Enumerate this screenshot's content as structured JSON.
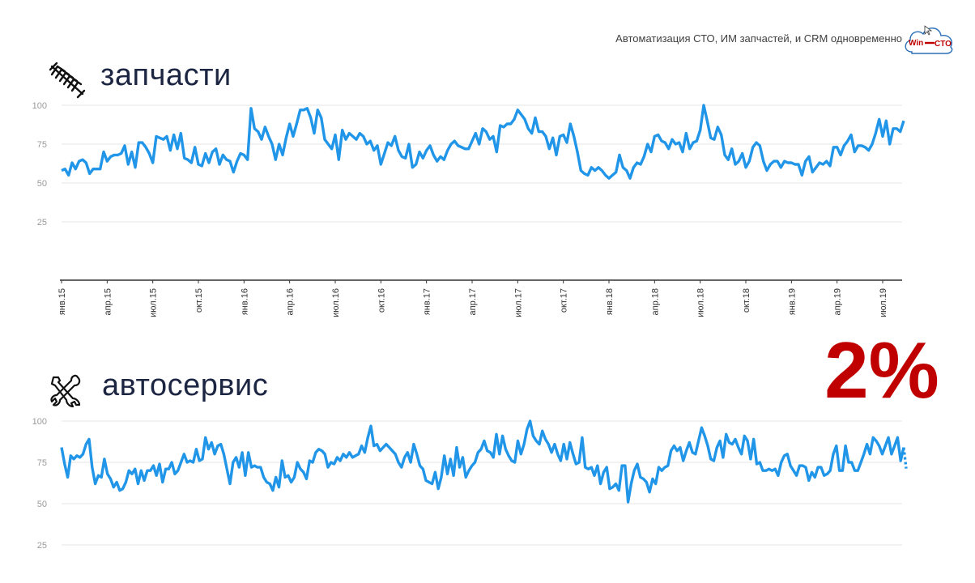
{
  "header": {
    "tagline": "Автоматизация СТО, ИМ запчастей, и CRM одновременно",
    "logo_text": {
      "left": "Win",
      "right": "CTO"
    }
  },
  "sections": [
    {
      "title": "запчасти",
      "icon": "spring-icon"
    },
    {
      "title": "автосервис",
      "icon": "wrench-screwdriver-icon"
    }
  ],
  "highlight": {
    "text": "2%",
    "color": "#c00000"
  },
  "colors": {
    "line": "#2196e8",
    "grid": "#e4e4e4",
    "title": "#1c2541"
  },
  "chart_data": [
    {
      "type": "line",
      "ylim": [
        0,
        100
      ],
      "yticks": [
        25,
        50,
        75,
        100
      ],
      "grid": true,
      "x_tick_labels": [
        "янв.15",
        "апр.15",
        "июл.15",
        "окт.15",
        "янв.16",
        "апр.16",
        "июл.16",
        "окт.16",
        "янв.17",
        "апр.17",
        "июл.17",
        "окт.17",
        "янв.18",
        "апр.18",
        "июл.18",
        "окт.18",
        "янв.19",
        "апр.19",
        "июл.19"
      ],
      "series": [
        {
          "values": [
            58,
            59,
            55,
            63,
            59,
            64,
            65,
            63,
            56,
            59,
            59,
            59,
            70,
            64,
            67,
            68,
            68,
            69,
            74,
            62,
            70,
            60,
            76,
            76,
            73,
            69,
            63,
            80,
            79,
            78,
            80,
            71,
            81,
            72,
            82,
            66,
            65,
            63,
            73,
            62,
            61,
            69,
            63,
            70,
            72,
            62,
            68,
            65,
            64,
            57,
            64,
            69,
            68,
            65,
            98,
            85,
            83,
            78,
            86,
            80,
            75,
            65,
            75,
            68,
            79,
            88,
            80,
            88,
            97,
            97,
            98,
            92,
            82,
            97,
            92,
            78,
            75,
            72,
            81,
            65,
            84,
            78,
            82,
            80,
            78,
            82,
            80,
            75,
            77,
            71,
            74,
            62,
            69,
            76,
            74,
            80,
            71,
            67,
            66,
            75,
            60,
            62,
            70,
            66,
            71,
            74,
            68,
            64,
            67,
            65,
            71,
            75,
            77,
            74,
            73,
            72,
            72,
            77,
            82,
            75,
            85,
            83,
            78,
            80,
            70,
            87,
            86,
            88,
            88,
            91,
            97,
            94,
            91,
            85,
            82,
            92,
            83,
            83,
            80,
            72,
            79,
            68,
            80,
            81,
            76,
            88,
            80,
            70,
            58,
            56,
            55,
            60,
            58,
            60,
            58,
            55,
            53,
            55,
            57,
            68,
            60,
            58,
            53,
            60,
            63,
            62,
            67,
            75,
            70,
            80,
            81,
            77,
            76,
            72,
            78,
            75,
            76,
            70,
            82,
            72,
            76,
            77,
            84,
            100,
            90,
            79,
            78,
            86,
            81,
            68,
            65,
            72,
            62,
            64,
            69,
            60,
            64,
            73,
            76,
            74,
            64,
            58,
            62,
            64,
            64,
            60,
            64,
            63,
            63,
            62,
            62,
            55,
            64,
            67,
            57,
            60,
            63,
            62,
            64,
            61,
            73,
            73,
            68,
            74,
            77,
            81,
            70,
            74,
            74,
            73,
            71,
            75,
            82,
            91,
            80,
            90,
            75,
            85,
            85,
            83,
            90
          ]
        }
      ]
    },
    {
      "type": "line",
      "ylim": [
        0,
        100
      ],
      "yticks": [
        25,
        50,
        75,
        100
      ],
      "grid": true,
      "series": [
        {
          "values": [
            84,
            74,
            66,
            79,
            77,
            79,
            78,
            80,
            86,
            89,
            72,
            62,
            67,
            66,
            77,
            68,
            65,
            60,
            63,
            58,
            59,
            63,
            70,
            68,
            71,
            62,
            70,
            64,
            70,
            70,
            73,
            67,
            74,
            63,
            71,
            71,
            75,
            68,
            70,
            75,
            80,
            75,
            76,
            75,
            83,
            76,
            77,
            90,
            83,
            87,
            80,
            85,
            86,
            80,
            71,
            62,
            75,
            78,
            72,
            81,
            67,
            81,
            72,
            73,
            72,
            72,
            66,
            63,
            62,
            58,
            66,
            60,
            76,
            66,
            67,
            63,
            66,
            75,
            71,
            69,
            65,
            76,
            75,
            81,
            83,
            82,
            80,
            72,
            75,
            74,
            78,
            76,
            80,
            78,
            81,
            78,
            79,
            80,
            85,
            81,
            90,
            97,
            85,
            86,
            82,
            84,
            86,
            84,
            82,
            80,
            75,
            72,
            78,
            81,
            75,
            86,
            80,
            73,
            71,
            64,
            63,
            62,
            69,
            59,
            66,
            79,
            68,
            77,
            67,
            84,
            72,
            78,
            66,
            70,
            73,
            75,
            81,
            83,
            88,
            82,
            81,
            78,
            92,
            80,
            91,
            83,
            79,
            76,
            75,
            88,
            80,
            86,
            95,
            100,
            91,
            88,
            86,
            94,
            89,
            86,
            81,
            86,
            80,
            76,
            86,
            77,
            87,
            80,
            74,
            75,
            90,
            72,
            71,
            72,
            67,
            73,
            62,
            69,
            72,
            59,
            60,
            62,
            58,
            73,
            73,
            51,
            62,
            70,
            74,
            66,
            65,
            63,
            57,
            65,
            62,
            72,
            70,
            72,
            73,
            82,
            85,
            82,
            84,
            76,
            82,
            87,
            81,
            80,
            88,
            96,
            91,
            85,
            77,
            76,
            84,
            88,
            78,
            92,
            87,
            86,
            89,
            84,
            80,
            91,
            88,
            77,
            89,
            74,
            75,
            70,
            70,
            71,
            70,
            71,
            67,
            75,
            79,
            80,
            73,
            70,
            67,
            73,
            73,
            72,
            64,
            69,
            66,
            72,
            72,
            67,
            68,
            70,
            80,
            85,
            70,
            70,
            85,
            75,
            75,
            70,
            70,
            75,
            80,
            86,
            80,
            90,
            88,
            85,
            80,
            85,
            90,
            80,
            85,
            90,
            76,
            84
          ]
        }
      ]
    }
  ]
}
